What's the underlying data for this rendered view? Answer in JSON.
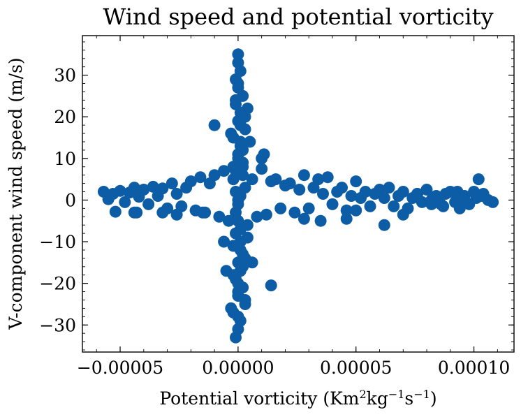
{
  "chart_data": {
    "type": "scatter",
    "title": "Wind speed and potential vorticity",
    "xlabel": {
      "text": "Potential vorticity (Km",
      "sup1": "2",
      "mid": "kg",
      "sup2": "−1",
      "mid2": "s",
      "sup3": "−1",
      "end": ")"
    },
    "ylabel": "V-component wind speed (m/s)",
    "xlim": [
      -6.6e-05,
      0.000117
    ],
    "ylim": [
      -36.5,
      39.5
    ],
    "xticks": [
      -5e-05,
      0.0,
      5e-05,
      0.0001
    ],
    "xtick_labels": [
      "−0.00005",
      "0.00000",
      "0.00005",
      "0.00010"
    ],
    "yticks": [
      -30,
      -20,
      -10,
      0,
      10,
      20,
      30
    ],
    "ytick_labels": [
      "−30",
      "−20",
      "−10",
      "0",
      "10",
      "20",
      "30"
    ],
    "grid": false,
    "marker_color": "#0c5da5",
    "series": [
      {
        "x": [
          -5.7e-05,
          -5.5e-05,
          -5.3e-05,
          -5e-05,
          -4.8e-05,
          -4.6e-05,
          -4.4e-05,
          -4.2e-05,
          -4e-05,
          -3.8e-05,
          -3.6e-05,
          -3.4e-05,
          -3.2e-05,
          -3e-05,
          -2.8e-05,
          -2.6e-05,
          -2.4e-05,
          -2.2e-05,
          -2e-05,
          -1.8e-05,
          -1.6e-05,
          -1.4e-05,
          -1.2e-05,
          -1e-05,
          -8e-06,
          -6e-06,
          -4e-06,
          -2e-06,
          0.0,
          2e-06,
          4e-06,
          6e-06,
          8e-06,
          1e-05,
          1.2e-05,
          1.4e-05,
          1.6e-05,
          1.8e-05,
          2e-05,
          2.2e-05,
          2.4e-05,
          2.6e-05,
          2.8e-05,
          3e-05,
          3.2e-05,
          3.4e-05,
          3.6e-05,
          3.8e-05,
          4e-05,
          4.2e-05,
          4.4e-05,
          4.6e-05,
          4.8e-05,
          5e-05,
          5.2e-05,
          5.4e-05,
          5.6e-05,
          5.8e-05,
          6e-05,
          6.2e-05,
          6.4e-05,
          6.6e-05,
          6.8e-05,
          7e-05,
          7.2e-05,
          7.4e-05,
          7.6e-05,
          7.8e-05,
          8e-05,
          8.2e-05,
          8.4e-05,
          8.6e-05,
          8.8e-05,
          9e-05,
          9.2e-05,
          9.4e-05,
          9.6e-05,
          9.8e-05,
          0.0001,
          0.000102,
          0.000104,
          0.000106,
          0.000108,
          -5.2e-05,
          -4.4e-05,
          -4.3e-05,
          -3.2e-05,
          -2.6e-05,
          -1.5e-05,
          2.8e-05,
          3.5e-05,
          4.6e-05,
          5e-05,
          6.2e-05,
          7e-05,
          8.2e-05,
          9.4e-05,
          0.000101,
          0.000103,
          9.3e-05,
          8.7e-05,
          7.6e-05,
          -6e-06,
          1e-05,
          1.4e-05,
          6e-06,
          -1e-05,
          -5e-06,
          1.1e-05,
          0.0,
          0.0,
          1e-06,
          -1e-06,
          0.0,
          2e-06,
          -1e-06,
          1e-06,
          0.0,
          3e-06,
          -2e-06,
          1e-06,
          0.0,
          2e-06,
          -1e-06,
          4e-06,
          3e-06,
          -3e-06,
          5e-06,
          2e-06,
          -1e-06,
          0.0,
          1e-06,
          -2e-06,
          3e-06,
          0.0,
          2e-06,
          -1e-06,
          1e-06,
          0.0,
          2e-06,
          -2e-06,
          4e-06,
          1e-06,
          -3e-06,
          3e-06,
          0.0,
          -1e-06,
          2e-06,
          1e-06,
          -2e-06,
          0.0,
          3e-06,
          -1e-06,
          1e-06,
          0.0,
          2e-06,
          -1e-06,
          0.0,
          1e-06,
          0.0,
          0.0,
          -1e-06,
          1e-06,
          0.0,
          2e-06,
          -2e-06,
          1e-06,
          3e-06,
          -1e-06
        ],
        "y": [
          2.0,
          0.2,
          1.5,
          2.2,
          -0.5,
          1.8,
          3.0,
          0.8,
          2.5,
          -1.0,
          3.2,
          1.0,
          2.8,
          -2.0,
          4.0,
          1.5,
          -1.5,
          3.0,
          4.5,
          -2.5,
          5.5,
          -3.0,
          4.0,
          6.0,
          -4.0,
          7.0,
          -5.0,
          8.0,
          0.0,
          6.0,
          -6.0,
          5.0,
          -4.0,
          7.5,
          -3.5,
          4.5,
          5.0,
          -2.0,
          3.5,
          4.0,
          -3.0,
          2.5,
          6.0,
          -2.0,
          3.0,
          5.0,
          1.5,
          5.5,
          -1.0,
          2.0,
          3.0,
          -2.5,
          1.0,
          4.5,
          0.5,
          2.0,
          -1.5,
          1.5,
          2.5,
          0.5,
          3.0,
          -1.5,
          1.0,
          2.0,
          -2.0,
          0.5,
          1.5,
          -0.5,
          2.5,
          0.0,
          1.0,
          -1.0,
          1.5,
          2.0,
          -0.5,
          0.0,
          1.0,
          -1.0,
          2.0,
          5.0,
          1.5,
          0.0,
          -0.5,
          -2.8,
          -3.0,
          -3.0,
          -3.0,
          -3.5,
          -3.0,
          -4.5,
          -5.0,
          -4.5,
          -2.5,
          -6.0,
          -3.5,
          -1.0,
          -2.0,
          0.5,
          1.0,
          2.0,
          -1.5,
          1.5,
          -10.0,
          10.0,
          -20.5,
          -15.0,
          18.0,
          -17.0,
          11.0,
          35.0,
          33.0,
          31.0,
          29.0,
          27.0,
          25.0,
          23.0,
          21.0,
          19.0,
          17.0,
          15.0,
          13.0,
          11.0,
          9.0,
          7.0,
          22.0,
          20.0,
          16.0,
          14.0,
          12.0,
          -33.0,
          -31.0,
          -29.0,
          -27.0,
          -25.0,
          -23.0,
          -21.0,
          -19.0,
          -17.0,
          -15.0,
          -13.0,
          -11.0,
          -9.0,
          -7.0,
          -26.0,
          -24.0,
          -22.0,
          -18.0,
          -16.0,
          -12.0,
          5.0,
          -5.0,
          3.0,
          -3.0,
          1.0,
          -1.0,
          8.0,
          -8.0,
          10.0,
          -10.0,
          28.0,
          -28.0,
          24.0,
          18.0,
          -20.0,
          20.0,
          -18.0,
          14.0,
          -14.0,
          2.0
        ]
      }
    ]
  }
}
